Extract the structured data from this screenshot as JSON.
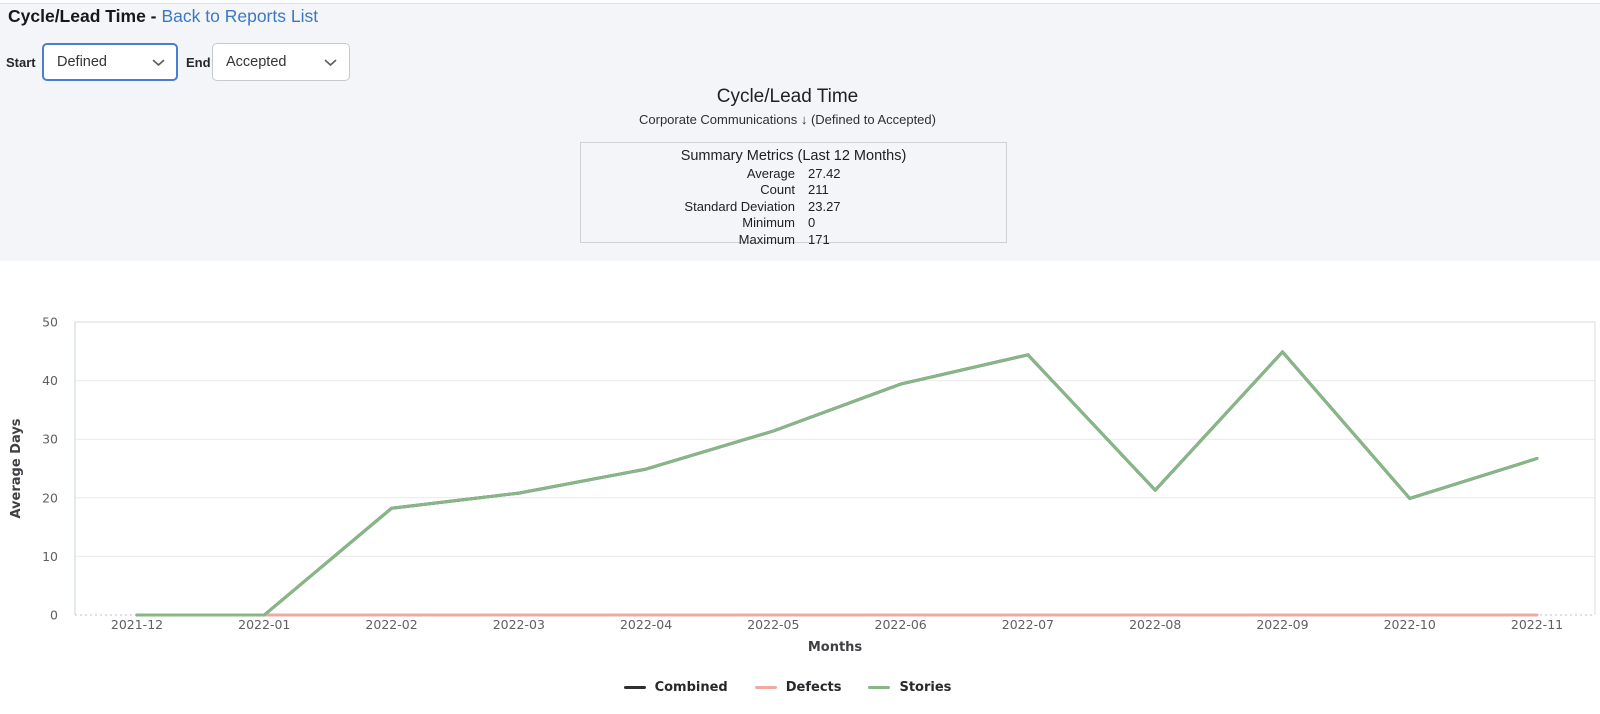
{
  "page": {
    "title_prefix": "Cycle/Lead Time -",
    "back_link": "Back to Reports List"
  },
  "colors": {
    "link_blue": "#3c78c3",
    "focus_border_blue": "#4b7dd1"
  },
  "controls": {
    "start_label": "Start",
    "start_value": "Defined",
    "end_label": "End",
    "end_value": "Accepted"
  },
  "chart_header": {
    "title": "Cycle/Lead Time",
    "subtitle": "Corporate Communications ↓ (Defined to Accepted)"
  },
  "summary": {
    "title": "Summary Metrics (Last 12 Months)",
    "rows": [
      {
        "label": "Average",
        "value": "27.42"
      },
      {
        "label": "Count",
        "value": "211"
      },
      {
        "label": "Standard Deviation",
        "value": "23.27"
      },
      {
        "label": "Minimum",
        "value": "0"
      },
      {
        "label": "Maximum",
        "value": "171"
      }
    ]
  },
  "chart_data": {
    "type": "line",
    "title": "Cycle/Lead Time",
    "xlabel": "Months",
    "ylabel": "Average Days",
    "ylim": [
      0,
      50
    ],
    "yticks": [
      0,
      10,
      20,
      30,
      40,
      50
    ],
    "grid": true,
    "legend_position": "bottom",
    "categories": [
      "2021-12",
      "2022-01",
      "2022-02",
      "2022-03",
      "2022-04",
      "2022-05",
      "2022-06",
      "2022-07",
      "2022-08",
      "2022-09",
      "2022-10",
      "2022-11"
    ],
    "series": [
      {
        "name": "Combined",
        "color": "#2f2f33",
        "values": [
          0,
          0,
          18.2,
          20.8,
          24.9,
          31.4,
          39.4,
          44.4,
          21.3,
          44.9,
          19.9,
          26.7
        ],
        "note": "visually hidden beneath Stories line"
      },
      {
        "name": "Defects",
        "color": "#eeaba4",
        "values": [
          null,
          0,
          0,
          0,
          0,
          0,
          0,
          0,
          0,
          0,
          0,
          0
        ]
      },
      {
        "name": "Stories",
        "color": "#87b787",
        "values": [
          0,
          0,
          18.2,
          20.8,
          24.9,
          31.4,
          39.4,
          44.4,
          21.3,
          44.9,
          19.9,
          26.7
        ]
      }
    ]
  }
}
